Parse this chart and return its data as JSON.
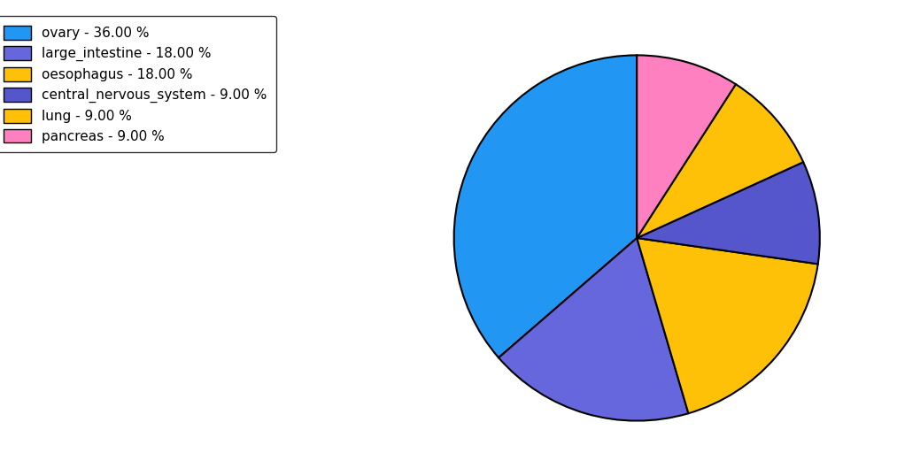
{
  "labels": [
    "ovary",
    "large_intestine",
    "oesophagus",
    "central_nervous_system",
    "lung",
    "pancreas"
  ],
  "values": [
    36.0,
    18.0,
    18.0,
    9.0,
    9.0,
    9.0
  ],
  "colors": [
    "#2196F3",
    "#6666DD",
    "#FFC107",
    "#5555CC",
    "#FFC107",
    "#FF80C0"
  ],
  "legend_labels": [
    "ovary - 36.00 %",
    "large_intestine - 18.00 %",
    "oesophagus - 18.00 %",
    "central_nervous_system - 9.00 %",
    "lung - 9.00 %",
    "pancreas - 9.00 %"
  ],
  "legend_colors": [
    "#2196F3",
    "#6666DD",
    "#FFC107",
    "#5555CC",
    "#FFC107",
    "#FF80C0"
  ],
  "startangle": 90,
  "figsize": [
    10.13,
    5.38
  ],
  "dpi": 100
}
